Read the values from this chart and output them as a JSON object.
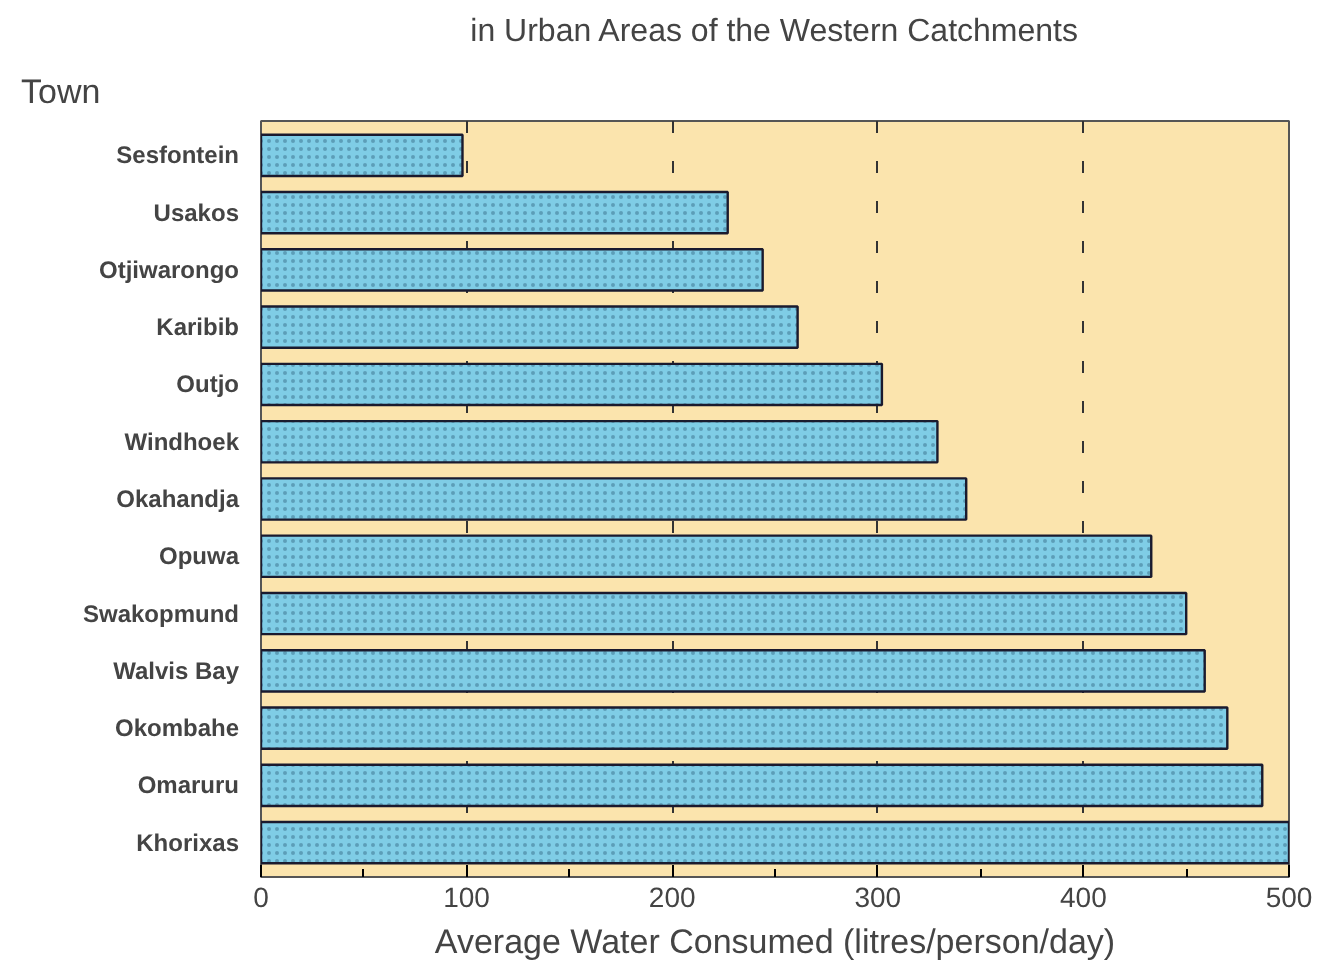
{
  "chart_data": {
    "type": "bar",
    "orientation": "horizontal",
    "title": "in Urban Areas of the Western Catchments",
    "ylabel": "Town",
    "xlabel": "Average Water Consumed (litres/person/day)",
    "categories": [
      "Sesfontein",
      "Usakos",
      "Otjiwarongo",
      "Karibib",
      "Outjo",
      "Windhoek",
      "Okahandja",
      "Opuwa",
      "Swakopmund",
      "Walvis Bay",
      "Okombahe",
      "Omaruru",
      "Khorixas"
    ],
    "values": [
      98,
      227,
      244,
      261,
      302,
      329,
      343,
      433,
      450,
      459,
      470,
      487,
      500
    ],
    "color": "#7fcde6",
    "xlim": [
      0,
      500
    ],
    "xticks": [
      0,
      {
        "value": 50,
        "label": null
      },
      100,
      {
        "value": 150,
        "label": null
      },
      200,
      {
        "value": 250,
        "label": null
      },
      300,
      {
        "value": 350,
        "label": null
      },
      400,
      {
        "value": 450,
        "label": null
      },
      500
    ],
    "grid": "x"
  }
}
